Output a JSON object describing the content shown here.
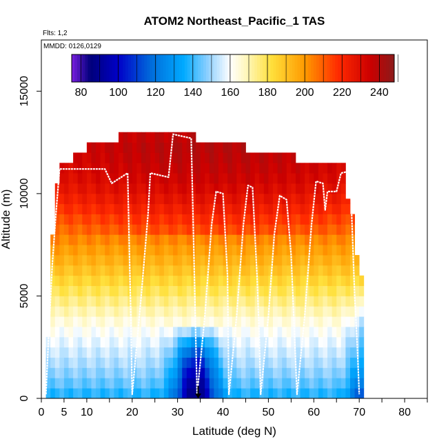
{
  "chart_data": {
    "type": "heatmap",
    "title": "ATOM2 Northeast_Pacific_1 TAS",
    "flights_note": "Flts: 1,2",
    "dates_note": "MMDD: 0126,0129",
    "xlabel": "Latitude (deg N)",
    "ylabel": "Altitude (m)",
    "xlim": [
      0,
      85
    ],
    "ylim": [
      0,
      17500
    ],
    "x_ticks": [
      0,
      5,
      10,
      20,
      30,
      40,
      50,
      60,
      70,
      80
    ],
    "x_tick_labels": [
      "0",
      "5",
      "10",
      "20",
      "30",
      "40",
      "50",
      "60",
      "70",
      "80"
    ],
    "y_ticks": [
      0,
      5000,
      10000,
      15000
    ],
    "y_tick_labels": [
      "0",
      "5000",
      "10000",
      "15000"
    ],
    "colorbar": {
      "min": 75,
      "max": 248,
      "ticks": [
        80,
        100,
        120,
        140,
        160,
        180,
        200,
        220,
        240
      ],
      "tick_labels": [
        "80",
        "100",
        "120",
        "140",
        "160",
        "180",
        "200",
        "220",
        "240"
      ],
      "stops": [
        {
          "v": 75,
          "c": "#7a1fe0"
        },
        {
          "v": 85,
          "c": "#00007a"
        },
        {
          "v": 100,
          "c": "#0000c8"
        },
        {
          "v": 118,
          "c": "#006edc"
        },
        {
          "v": 135,
          "c": "#00aaff"
        },
        {
          "v": 148,
          "c": "#8ed0ff"
        },
        {
          "v": 160,
          "c": "#ffffff"
        },
        {
          "v": 170,
          "c": "#fff5b0"
        },
        {
          "v": 182,
          "c": "#ffe03c"
        },
        {
          "v": 200,
          "c": "#ff9a00"
        },
        {
          "v": 218,
          "c": "#ff2a00"
        },
        {
          "v": 235,
          "c": "#cc0000"
        },
        {
          "v": 248,
          "c": "#8b1a1a"
        }
      ]
    },
    "field": {
      "x_range": [
        1,
        71
      ],
      "altitude_bin_m": 500,
      "ceiling_profile": [
        {
          "x": 1,
          "alt": 0
        },
        {
          "x": 1.5,
          "alt": 3000
        },
        {
          "x": 2,
          "alt": 6000
        },
        {
          "x": 2.5,
          "alt": 8000
        },
        {
          "x": 3,
          "alt": 9500
        },
        {
          "x": 3.5,
          "alt": 10500
        },
        {
          "x": 4,
          "alt": 11500
        },
        {
          "x": 7,
          "alt": 11500
        },
        {
          "x": 7,
          "alt": 12000
        },
        {
          "x": 10,
          "alt": 12000
        },
        {
          "x": 10,
          "alt": 12500
        },
        {
          "x": 17,
          "alt": 12500
        },
        {
          "x": 17,
          "alt": 13000
        },
        {
          "x": 33,
          "alt": 13000
        },
        {
          "x": 33,
          "alt": 12500
        },
        {
          "x": 44,
          "alt": 12500
        },
        {
          "x": 44,
          "alt": 12000
        },
        {
          "x": 55,
          "alt": 12000
        },
        {
          "x": 55,
          "alt": 11500
        },
        {
          "x": 66,
          "alt": 11500
        },
        {
          "x": 66,
          "alt": 10500
        },
        {
          "x": 68,
          "alt": 9000
        },
        {
          "x": 69,
          "alt": 7000
        },
        {
          "x": 70,
          "alt": 6000
        },
        {
          "x": 71,
          "alt": 0
        }
      ],
      "layers": [
        {
          "alt": 0,
          "tas": 135
        },
        {
          "alt": 500,
          "tas": 142
        },
        {
          "alt": 1500,
          "tas": 150
        },
        {
          "alt": 2500,
          "tas": 156
        },
        {
          "alt": 3500,
          "tas": 162
        },
        {
          "alt": 4500,
          "tas": 172
        },
        {
          "alt": 5500,
          "tas": 182
        },
        {
          "alt": 6500,
          "tas": 192
        },
        {
          "alt": 7500,
          "tas": 201
        },
        {
          "alt": 8500,
          "tas": 210
        },
        {
          "alt": 9500,
          "tas": 220
        },
        {
          "alt": 10500,
          "tas": 228
        },
        {
          "alt": 11500,
          "tas": 232
        },
        {
          "alt": 12500,
          "tas": 234
        },
        {
          "alt": 13000,
          "tas": 230
        }
      ],
      "jet_core": {
        "lat": 34,
        "alt_top": 3200,
        "min_tas": 80
      }
    },
    "flight_track": [
      [
        1,
        200
      ],
      [
        1.6,
        3000
      ],
      [
        2.4,
        6500
      ],
      [
        3.2,
        9000
      ],
      [
        4,
        11200
      ],
      [
        14,
        11200
      ],
      [
        15.5,
        10500
      ],
      [
        19,
        11000
      ],
      [
        19.5,
        6000
      ],
      [
        19.7,
        4000
      ],
      [
        20,
        200
      ],
      [
        22,
        5000
      ],
      [
        23.5,
        9000
      ],
      [
        24,
        11000
      ],
      [
        28,
        10800
      ],
      [
        29,
        12900
      ],
      [
        33,
        12700
      ],
      [
        33.5,
        8000
      ],
      [
        34,
        3000
      ],
      [
        34.3,
        200
      ],
      [
        36,
        4000
      ],
      [
        37.5,
        8500
      ],
      [
        38.5,
        10100
      ],
      [
        40,
        10000
      ],
      [
        40.5,
        8000
      ],
      [
        41,
        6000
      ],
      [
        41.3,
        200
      ],
      [
        43,
        4000
      ],
      [
        44.5,
        8500
      ],
      [
        45.5,
        10400
      ],
      [
        46.5,
        10300
      ],
      [
        47.5,
        6000
      ],
      [
        48,
        3000
      ],
      [
        48.3,
        200
      ],
      [
        50,
        4000
      ],
      [
        51.3,
        8000
      ],
      [
        52.5,
        9900
      ],
      [
        54,
        9700
      ],
      [
        55,
        7000
      ],
      [
        56.3,
        200
      ],
      [
        58,
        4000
      ],
      [
        59.5,
        8500
      ],
      [
        60.5,
        10600
      ],
      [
        62,
        10500
      ],
      [
        62.5,
        9200
      ],
      [
        63,
        10100
      ],
      [
        65,
        10100
      ],
      [
        66,
        11000
      ],
      [
        68,
        11100
      ],
      [
        68.5,
        8000
      ],
      [
        69,
        5000
      ],
      [
        69.6,
        2500
      ],
      [
        70,
        200
      ]
    ]
  }
}
